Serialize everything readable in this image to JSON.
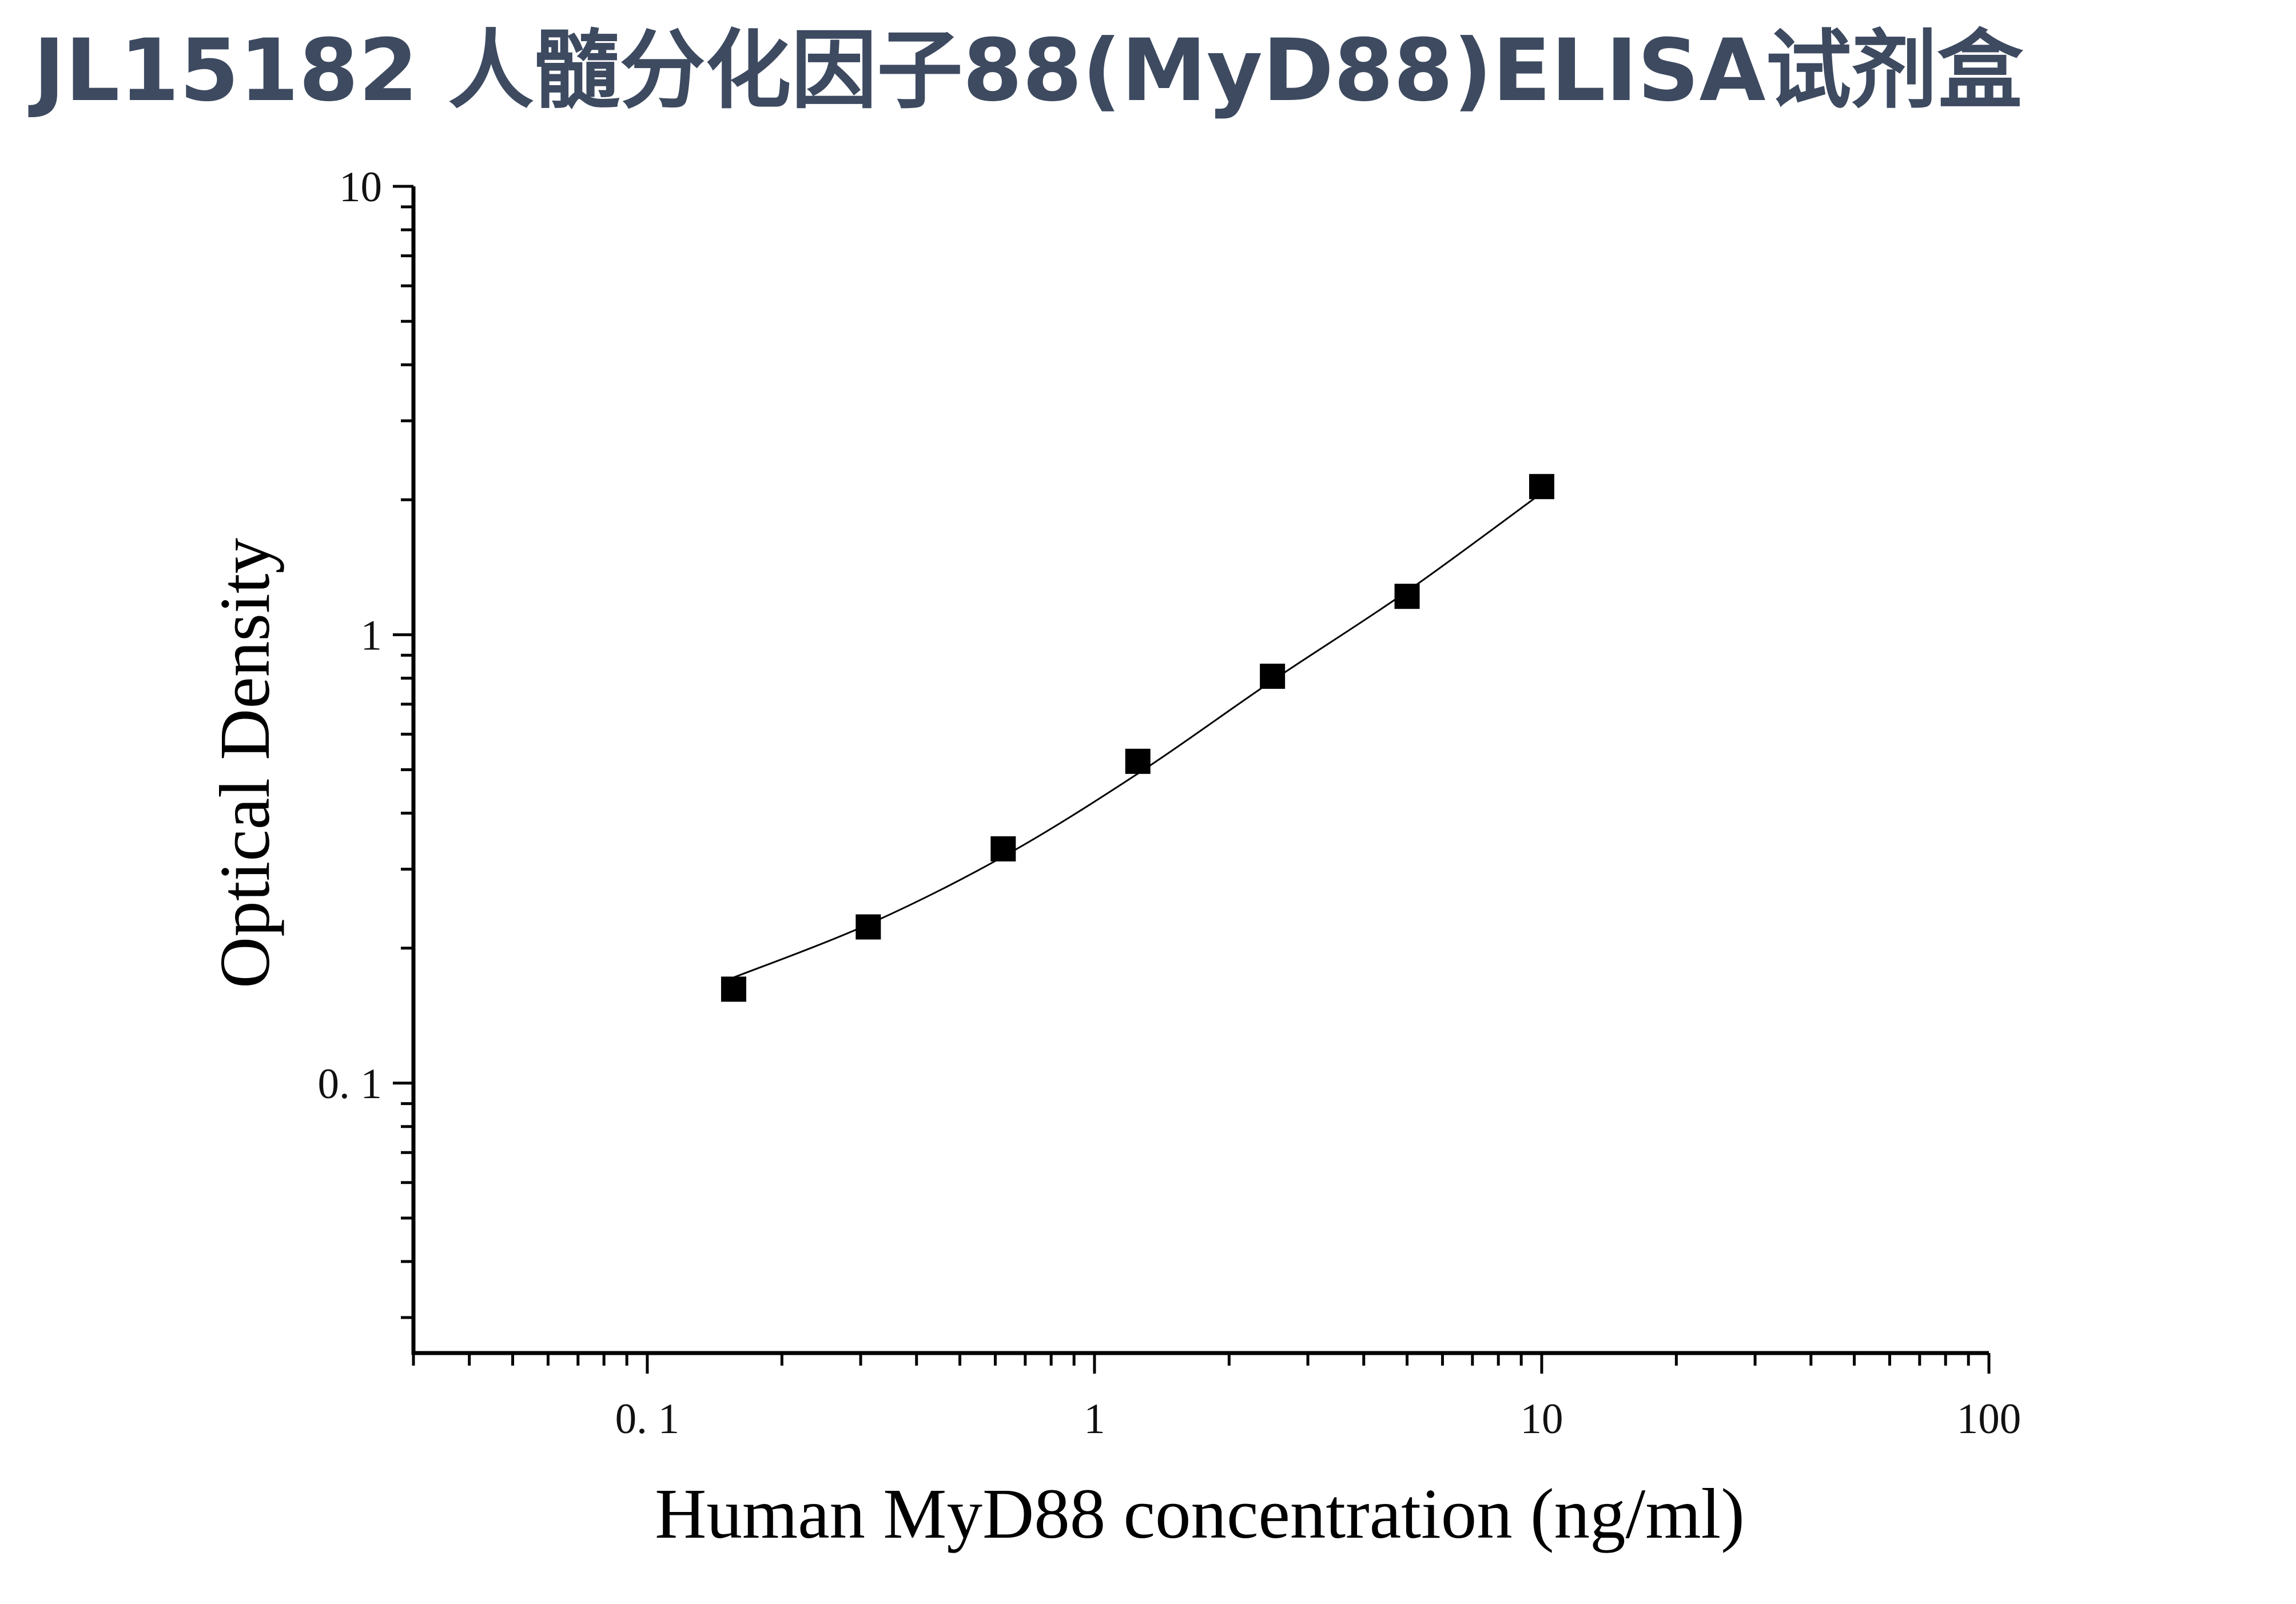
{
  "title": "JL15182 人髓分化因子88(MyD88)ELISA试剂盒",
  "chart_data": {
    "type": "scatter",
    "xlabel": "Human MyD88 concentration (ng/ml)",
    "ylabel": "Optical Density",
    "xscale": "log",
    "yscale": "log",
    "xlim": [
      0.03,
      100
    ],
    "ylim": [
      0.025,
      10
    ],
    "x_ticks": [
      {
        "value": 0.1,
        "label": "0. 1"
      },
      {
        "value": 1,
        "label": "1"
      },
      {
        "value": 10,
        "label": "10"
      },
      {
        "value": 100,
        "label": "100"
      }
    ],
    "y_ticks": [
      {
        "value": 0.1,
        "label": "0. 1"
      },
      {
        "value": 1,
        "label": "1"
      },
      {
        "value": 10,
        "label": "10"
      }
    ],
    "grid": false,
    "series": [
      {
        "marker": "square",
        "color": "#000000",
        "x": [
          0.156,
          0.312,
          0.625,
          1.25,
          2.5,
          5,
          10
        ],
        "y": [
          0.162,
          0.223,
          0.333,
          0.522,
          0.808,
          1.218,
          2.14
        ]
      }
    ],
    "fit_curve": {
      "color": "#000000",
      "x": [
        0.156,
        0.312,
        0.625,
        1.25,
        2.5,
        5,
        10
      ],
      "y": [
        0.172,
        0.226,
        0.32,
        0.49,
        0.79,
        1.25,
        2.07
      ]
    }
  }
}
